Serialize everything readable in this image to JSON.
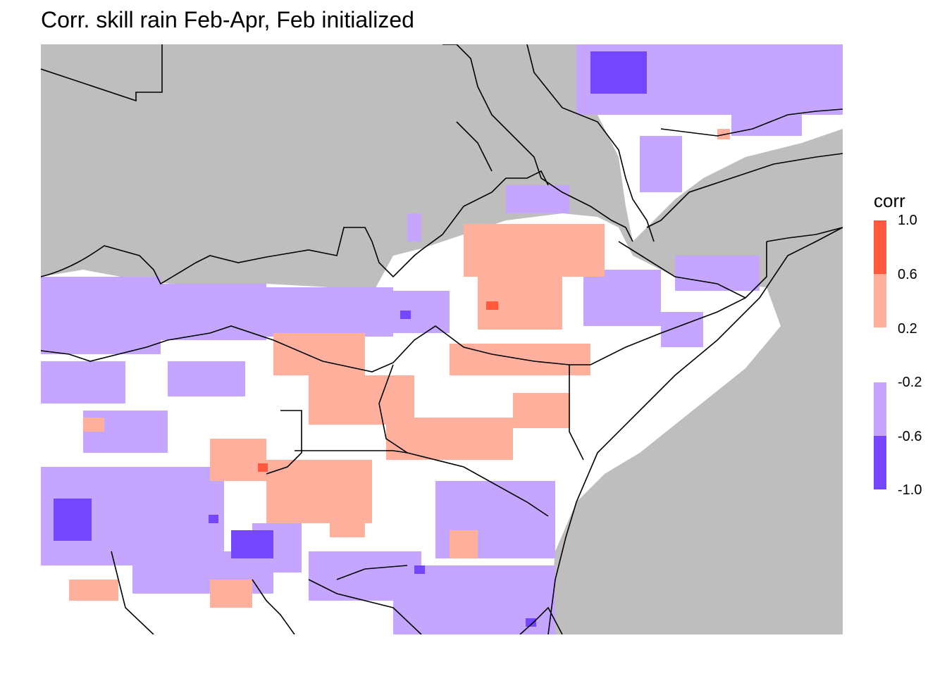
{
  "title": "Corr. skill rain Feb-Apr, Feb initialized",
  "legend": {
    "title": "corr",
    "positive": [
      {
        "label": "1.0",
        "color": "#ff5a3d"
      },
      {
        "label": "0.6",
        "color": "#ffb09c"
      },
      {
        "label": "0.2",
        "color": "#ffffff"
      }
    ],
    "negative": [
      {
        "label": "-0.2",
        "color": "#c4a6ff"
      },
      {
        "label": "-0.6",
        "color": "#7447ff"
      },
      {
        "label": "-1.0",
        "color": "#7447ff"
      }
    ]
  },
  "colors": {
    "no_data": "#bebebe",
    "neutral": "#ffffff",
    "positive_low": "#ffb09c",
    "positive_high": "#ff5a3d",
    "negative_low": "#c4a6ff",
    "negative_high": "#7447ff",
    "border": "#000000"
  }
}
